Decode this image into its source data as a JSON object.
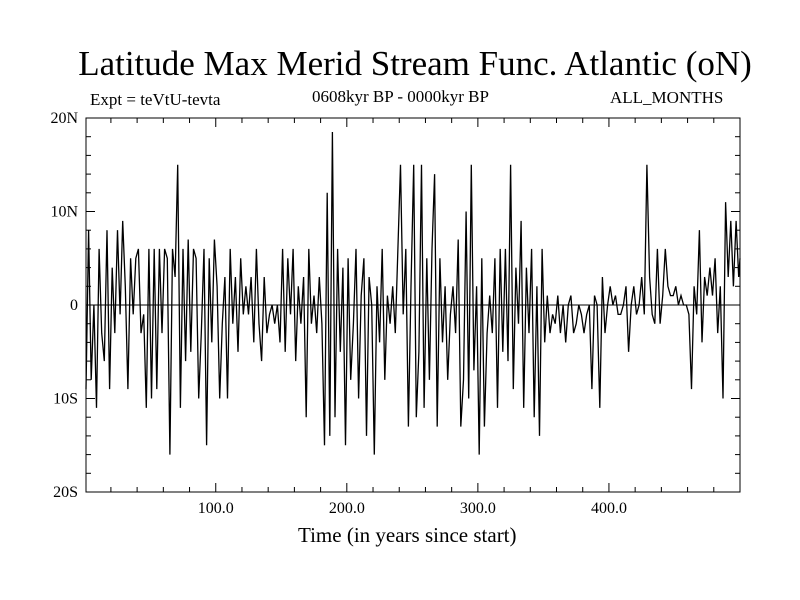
{
  "chart_data": {
    "type": "line",
    "title": "Latitude Max Merid Stream Func. Atlantic (oN)",
    "top_left_label": "Expt = teVtU-tevta",
    "top_center_label": "0608kyr BP - 0000kyr BP",
    "top_right_label": "ALL_MONTHS",
    "xlabel": "Time (in years since start)",
    "ylabel": "",
    "xlim": [
      1,
      500
    ],
    "ylim": [
      -20,
      20
    ],
    "xticks": [
      {
        "value": 100,
        "label": "100.0"
      },
      {
        "value": 200,
        "label": "200.0"
      },
      {
        "value": 300,
        "label": "300.0"
      },
      {
        "value": 400,
        "label": "400.0"
      }
    ],
    "yticks": [
      {
        "value": 20,
        "label": "20N"
      },
      {
        "value": 10,
        "label": "10N"
      },
      {
        "value": 0,
        "label": "0"
      },
      {
        "value": -10,
        "label": "10S"
      },
      {
        "value": -20,
        "label": "20S"
      }
    ],
    "zero_line": true,
    "grid": false,
    "series": [
      {
        "values": [
          [
            1,
            -9
          ],
          [
            3,
            8
          ],
          [
            5,
            -8
          ],
          [
            7,
            0
          ],
          [
            9,
            -11
          ],
          [
            11,
            6
          ],
          [
            13,
            -3
          ],
          [
            15,
            -6
          ],
          [
            17,
            8
          ],
          [
            19,
            -9
          ],
          [
            21,
            4
          ],
          [
            23,
            -3
          ],
          [
            25,
            8
          ],
          [
            27,
            -1
          ],
          [
            29,
            9
          ],
          [
            31,
            2
          ],
          [
            33,
            -9
          ],
          [
            35,
            5
          ],
          [
            37,
            -1
          ],
          [
            39,
            5
          ],
          [
            41,
            6
          ],
          [
            43,
            -3
          ],
          [
            45,
            -1
          ],
          [
            47,
            -11
          ],
          [
            49,
            6
          ],
          [
            51,
            -10
          ],
          [
            53,
            6
          ],
          [
            55,
            -9
          ],
          [
            57,
            6
          ],
          [
            59,
            -3
          ],
          [
            61,
            6
          ],
          [
            63,
            5
          ],
          [
            65,
            -16
          ],
          [
            67,
            6
          ],
          [
            69,
            3
          ],
          [
            71,
            15
          ],
          [
            73,
            -11
          ],
          [
            75,
            6
          ],
          [
            77,
            -6
          ],
          [
            79,
            7
          ],
          [
            81,
            -5
          ],
          [
            83,
            6
          ],
          [
            85,
            5
          ],
          [
            87,
            -10
          ],
          [
            89,
            -3
          ],
          [
            91,
            6
          ],
          [
            93,
            -15
          ],
          [
            95,
            5
          ],
          [
            97,
            -4
          ],
          [
            99,
            7
          ],
          [
            101,
            2
          ],
          [
            103,
            -10
          ],
          [
            105,
            -2
          ],
          [
            107,
            3
          ],
          [
            109,
            -10
          ],
          [
            111,
            6
          ],
          [
            113,
            -2
          ],
          [
            115,
            3
          ],
          [
            117,
            -5
          ],
          [
            119,
            5
          ],
          [
            121,
            -1
          ],
          [
            123,
            2
          ],
          [
            125,
            -1
          ],
          [
            127,
            3
          ],
          [
            129,
            -4
          ],
          [
            131,
            6
          ],
          [
            133,
            -2
          ],
          [
            135,
            -6
          ],
          [
            137,
            3
          ],
          [
            139,
            -3
          ],
          [
            141,
            -1
          ],
          [
            143,
            0
          ],
          [
            145,
            -2
          ],
          [
            147,
            0
          ],
          [
            149,
            -4
          ],
          [
            151,
            6
          ],
          [
            153,
            -5
          ],
          [
            155,
            5
          ],
          [
            157,
            -1
          ],
          [
            159,
            6
          ],
          [
            161,
            -6
          ],
          [
            163,
            2
          ],
          [
            165,
            -2
          ],
          [
            167,
            3
          ],
          [
            169,
            -12
          ],
          [
            171,
            6
          ],
          [
            173,
            -2
          ],
          [
            175,
            1
          ],
          [
            177,
            -3
          ],
          [
            179,
            3
          ],
          [
            181,
            -2
          ],
          [
            183,
            -15
          ],
          [
            185,
            12
          ],
          [
            187,
            -14
          ],
          [
            189,
            18.5
          ],
          [
            191,
            -12
          ],
          [
            193,
            6
          ],
          [
            195,
            -5
          ],
          [
            197,
            4
          ],
          [
            199,
            -15
          ],
          [
            201,
            5
          ],
          [
            203,
            -8
          ],
          [
            205,
            -2
          ],
          [
            207,
            6
          ],
          [
            209,
            -10
          ],
          [
            211,
            1
          ],
          [
            213,
            5
          ],
          [
            215,
            -14
          ],
          [
            217,
            3
          ],
          [
            219,
            0
          ],
          [
            221,
            -16
          ],
          [
            223,
            2
          ],
          [
            225,
            -4
          ],
          [
            227,
            6
          ],
          [
            229,
            -8
          ],
          [
            231,
            1
          ],
          [
            233,
            -2
          ],
          [
            235,
            2
          ],
          [
            237,
            -3
          ],
          [
            239,
            6
          ],
          [
            241,
            15
          ],
          [
            243,
            -1
          ],
          [
            245,
            6
          ],
          [
            247,
            -13
          ],
          [
            249,
            2
          ],
          [
            251,
            15
          ],
          [
            253,
            -12
          ],
          [
            255,
            -5
          ],
          [
            257,
            15
          ],
          [
            259,
            -11
          ],
          [
            261,
            5
          ],
          [
            263,
            -8
          ],
          [
            265,
            6
          ],
          [
            267,
            14
          ],
          [
            269,
            -13
          ],
          [
            271,
            5
          ],
          [
            273,
            -4
          ],
          [
            275,
            2
          ],
          [
            277,
            -8
          ],
          [
            279,
            -1
          ],
          [
            281,
            2
          ],
          [
            283,
            -3
          ],
          [
            285,
            7
          ],
          [
            287,
            -13
          ],
          [
            289,
            -8
          ],
          [
            291,
            10
          ],
          [
            293,
            -10
          ],
          [
            295,
            15
          ],
          [
            297,
            -7
          ],
          [
            299,
            2
          ],
          [
            301,
            -16
          ],
          [
            303,
            5
          ],
          [
            305,
            -13
          ],
          [
            307,
            -3
          ],
          [
            309,
            1
          ],
          [
            311,
            -3
          ],
          [
            313,
            5
          ],
          [
            315,
            -11
          ],
          [
            317,
            6
          ],
          [
            319,
            -5
          ],
          [
            321,
            6
          ],
          [
            323,
            -6
          ],
          [
            325,
            15
          ],
          [
            327,
            -9
          ],
          [
            329,
            4
          ],
          [
            331,
            -2
          ],
          [
            333,
            9
          ],
          [
            335,
            -11
          ],
          [
            337,
            4
          ],
          [
            339,
            -3
          ],
          [
            341,
            6
          ],
          [
            343,
            -12
          ],
          [
            345,
            2
          ],
          [
            347,
            -14
          ],
          [
            349,
            6
          ],
          [
            351,
            -4
          ],
          [
            353,
            1
          ],
          [
            355,
            -3
          ],
          [
            357,
            -1
          ],
          [
            359,
            -2
          ],
          [
            361,
            1
          ],
          [
            363,
            -3
          ],
          [
            365,
            0
          ],
          [
            367,
            -4
          ],
          [
            369,
            0
          ],
          [
            371,
            1
          ],
          [
            373,
            -3
          ],
          [
            375,
            -2
          ],
          [
            377,
            0
          ],
          [
            379,
            -1
          ],
          [
            381,
            -3
          ],
          [
            383,
            -1
          ],
          [
            385,
            0
          ],
          [
            387,
            -9
          ],
          [
            389,
            1
          ],
          [
            391,
            0
          ],
          [
            393,
            -11
          ],
          [
            395,
            3
          ],
          [
            397,
            -3
          ],
          [
            399,
            0
          ],
          [
            401,
            2
          ],
          [
            403,
            0
          ],
          [
            405,
            1
          ],
          [
            407,
            -1
          ],
          [
            409,
            -1
          ],
          [
            411,
            0
          ],
          [
            413,
            2
          ],
          [
            415,
            -5
          ],
          [
            417,
            0
          ],
          [
            419,
            2
          ],
          [
            421,
            -1
          ],
          [
            423,
            0
          ],
          [
            425,
            3
          ],
          [
            427,
            -1
          ],
          [
            429,
            15
          ],
          [
            431,
            3
          ],
          [
            433,
            -1
          ],
          [
            435,
            -2
          ],
          [
            437,
            6
          ],
          [
            439,
            -2
          ],
          [
            441,
            1
          ],
          [
            443,
            6
          ],
          [
            445,
            2
          ],
          [
            447,
            1
          ],
          [
            449,
            1
          ],
          [
            451,
            2
          ],
          [
            453,
            0
          ],
          [
            455,
            1
          ],
          [
            457,
            0
          ],
          [
            459,
            0
          ],
          [
            461,
            -1
          ],
          [
            463,
            -9
          ],
          [
            465,
            2
          ],
          [
            467,
            -1
          ],
          [
            469,
            8
          ],
          [
            471,
            -4
          ],
          [
            473,
            3
          ],
          [
            475,
            1
          ],
          [
            477,
            4
          ],
          [
            479,
            1
          ],
          [
            481,
            5
          ],
          [
            483,
            -3
          ],
          [
            485,
            2
          ],
          [
            487,
            -10
          ],
          [
            489,
            11
          ],
          [
            491,
            3
          ],
          [
            493,
            9
          ],
          [
            495,
            2
          ],
          [
            497,
            9
          ],
          [
            499,
            3
          ],
          [
            500,
            5
          ]
        ]
      }
    ]
  }
}
